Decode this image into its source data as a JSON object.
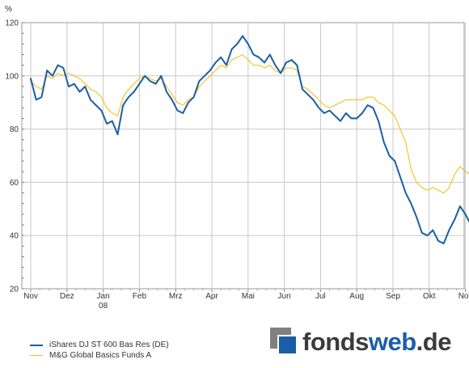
{
  "chart_data": {
    "type": "line",
    "ylabel": "%",
    "ylim": [
      20,
      120
    ],
    "yticks": [
      20,
      40,
      60,
      80,
      100,
      120
    ],
    "xlim": [
      0,
      12.2
    ],
    "x_tick_labels": [
      "Nov",
      "Dez",
      "Jan",
      "Feb",
      "Mrz",
      "Apr",
      "Mai",
      "Jun",
      "Jul",
      "Aug",
      "Sep",
      "Okt",
      "Nov"
    ],
    "x_tick_positions": [
      0,
      1,
      2,
      3,
      4,
      5,
      6,
      7,
      8,
      9,
      10,
      11,
      12
    ],
    "x_tick_sublabels": {
      "2": "08"
    },
    "grid": true,
    "legend_placement": "bottom-left",
    "series": [
      {
        "name": "iShares DJ ST 600 Bas Res (DE)",
        "color": "#1a5ea8",
        "x": [
          0,
          0.15,
          0.3,
          0.45,
          0.6,
          0.75,
          0.9,
          1.05,
          1.2,
          1.35,
          1.5,
          1.65,
          1.8,
          1.95,
          2.1,
          2.25,
          2.4,
          2.55,
          2.7,
          2.85,
          3.0,
          3.15,
          3.3,
          3.45,
          3.6,
          3.75,
          3.9,
          4.05,
          4.2,
          4.35,
          4.5,
          4.65,
          4.8,
          4.95,
          5.1,
          5.25,
          5.4,
          5.55,
          5.7,
          5.85,
          6.0,
          6.15,
          6.3,
          6.45,
          6.6,
          6.75,
          6.9,
          7.05,
          7.2,
          7.35,
          7.5,
          7.65,
          7.8,
          7.95,
          8.1,
          8.25,
          8.4,
          8.55,
          8.7,
          8.85,
          9.0,
          9.15,
          9.3,
          9.45,
          9.6,
          9.75,
          9.9,
          10.05,
          10.2,
          10.35,
          10.5,
          10.65,
          10.8,
          10.95,
          11.1,
          11.25,
          11.4,
          11.55,
          11.7,
          11.85,
          12.0,
          12.15,
          12.2
        ],
        "values": [
          99,
          91,
          92,
          102,
          100,
          104,
          103,
          96,
          97,
          94,
          96,
          91,
          89,
          87,
          82,
          83,
          78,
          89,
          92,
          94,
          97,
          100,
          98,
          97,
          100,
          94,
          91,
          87,
          86,
          90,
          92,
          98,
          100,
          102,
          105,
          107,
          104,
          110,
          112,
          115,
          112,
          108,
          107,
          105,
          108,
          104,
          101,
          105,
          106,
          104,
          95,
          93,
          91,
          88,
          86,
          87,
          85,
          83,
          86,
          84,
          84,
          86,
          89,
          88,
          83,
          75,
          70,
          68,
          62,
          56,
          52,
          47,
          41,
          40,
          42,
          38,
          37,
          42,
          46,
          51,
          48,
          44,
          39
        ]
      },
      {
        "name": "M&G Global Basics Funds A",
        "color": "#f3c21a",
        "x": [
          0,
          0.15,
          0.3,
          0.45,
          0.6,
          0.75,
          0.9,
          1.05,
          1.2,
          1.35,
          1.5,
          1.65,
          1.8,
          1.95,
          2.1,
          2.25,
          2.4,
          2.55,
          2.7,
          2.85,
          3.0,
          3.15,
          3.3,
          3.45,
          3.6,
          3.75,
          3.9,
          4.05,
          4.2,
          4.35,
          4.5,
          4.65,
          4.8,
          4.95,
          5.1,
          5.25,
          5.4,
          5.55,
          5.7,
          5.85,
          6.0,
          6.15,
          6.3,
          6.45,
          6.6,
          6.75,
          6.9,
          7.05,
          7.2,
          7.35,
          7.5,
          7.65,
          7.8,
          7.95,
          8.1,
          8.25,
          8.4,
          8.55,
          8.7,
          8.85,
          9.0,
          9.15,
          9.3,
          9.45,
          9.6,
          9.75,
          9.9,
          10.05,
          10.2,
          10.35,
          10.5,
          10.65,
          10.8,
          10.95,
          11.1,
          11.25,
          11.4,
          11.55,
          11.7,
          11.85,
          12.0,
          12.15,
          12.2
        ],
        "values": [
          98,
          96,
          95,
          100,
          99,
          101,
          100,
          101,
          100,
          99,
          97,
          95,
          94,
          92,
          88,
          86,
          85,
          92,
          95,
          97,
          99,
          100,
          99,
          98,
          99,
          96,
          93,
          90,
          89,
          91,
          92,
          96,
          98,
          100,
          102,
          104,
          103,
          106,
          107,
          108,
          106,
          104,
          104,
          103,
          104,
          102,
          101,
          103,
          103,
          102,
          96,
          95,
          93,
          91,
          89,
          88,
          89,
          90,
          91,
          91,
          91,
          91,
          92,
          92,
          90,
          89,
          87,
          85,
          80,
          75,
          65,
          60,
          58,
          57,
          58,
          57,
          56,
          58,
          63,
          66,
          64,
          63,
          59
        ]
      }
    ]
  },
  "legend": {
    "items": [
      {
        "label": "iShares DJ ST 600 Bas Res (DE)",
        "color": "#1a5ea8"
      },
      {
        "label": "M&G Global Basics Funds A",
        "color": "#f3c21a"
      }
    ]
  },
  "logo": {
    "part1": "fonds",
    "part2": "web",
    "part3": ".de"
  }
}
